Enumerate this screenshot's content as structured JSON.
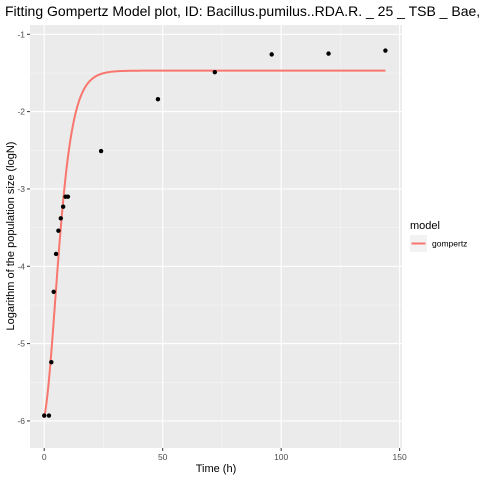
{
  "chart_data": {
    "type": "scatter",
    "title": "Fitting Gompertz Model plot, ID: Bacillus.pumilus..RDA.R. _ 25 _ TSB _ Bae,",
    "xlabel": "Time (h)",
    "ylabel": "Logarithm of the population size (logN)",
    "xlim": [
      -6,
      151
    ],
    "ylim": [
      -6.35,
      -0.88
    ],
    "x_ticks": [
      0,
      50,
      100,
      150
    ],
    "y_ticks": [
      -6,
      -5,
      -4,
      -3,
      -2,
      -1
    ],
    "grid": true,
    "legend": {
      "title": "model",
      "placement": "right",
      "entries": [
        {
          "label": "gompertz",
          "color": "#F8766D"
        }
      ]
    },
    "points": {
      "x": [
        0,
        2,
        3,
        4,
        5,
        6,
        7,
        8,
        9,
        10,
        24,
        48,
        72,
        96,
        120,
        144
      ],
      "y": [
        -5.93,
        -5.93,
        -5.24,
        -4.33,
        -3.84,
        -3.54,
        -3.38,
        -3.23,
        -3.1,
        -3.1,
        -2.51,
        -1.84,
        -1.49,
        -1.26,
        -1.25,
        -1.21
      ]
    },
    "series": [
      {
        "color": "#F8766D",
        "curve": "gompertz",
        "params": {
          "y0": -6.18,
          "ymax": -1.47,
          "mu": 0.42,
          "lag": 0.5
        }
      }
    ]
  }
}
